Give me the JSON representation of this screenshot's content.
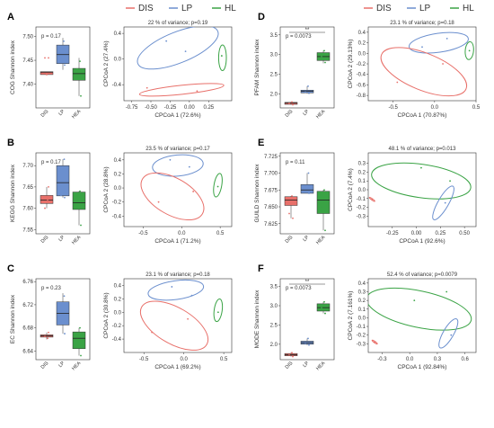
{
  "legend_left": [
    {
      "name": "DIS",
      "color": "#e8706a"
    },
    {
      "name": "LP",
      "color": "#6b8fce"
    },
    {
      "name": "HL",
      "color": "#3aa345"
    }
  ],
  "legend_right": [
    {
      "name": "DIS",
      "color": "#e8706a"
    },
    {
      "name": "LP",
      "color": "#6b8fce"
    },
    {
      "name": "HL",
      "color": "#3aa345"
    }
  ],
  "chart_data": [
    {
      "letter": "A",
      "type": "box",
      "ylabel": "COG Shannon index",
      "categories": [
        "DIS",
        "LP",
        "HEA"
      ],
      "p_label": "p = 0.17",
      "sig": "",
      "ylim": [
        7.35,
        7.52
      ],
      "yticks": [
        7.4,
        7.45,
        7.5
      ],
      "ytick_labels": [
        "7.40",
        "7.45",
        "7.50"
      ],
      "boxes": [
        {
          "q1": 7.42,
          "median": 7.425,
          "q3": 7.426,
          "low": 7.42,
          "high": 7.426,
          "color": "#e8706a"
        },
        {
          "q1": 7.443,
          "median": 7.462,
          "q3": 7.482,
          "low": 7.43,
          "high": 7.497,
          "color": "#6b8fce"
        },
        {
          "q1": 7.408,
          "median": 7.422,
          "q3": 7.433,
          "low": 7.375,
          "high": 7.455,
          "color": "#3aa345"
        }
      ],
      "points": [
        [
          [
            7.455,
            0.2
          ],
          [
            7.455,
            -0.2
          ],
          [
            7.42,
            0
          ]
        ],
        [
          [
            7.49,
            0.1
          ],
          [
            7.456,
            -0.2
          ],
          [
            7.44,
            0.2
          ]
        ],
        [
          [
            7.448,
            0.1
          ],
          [
            7.432,
            -0.2
          ],
          [
            7.375,
            0.2
          ]
        ]
      ]
    },
    {
      "letter": "B",
      "type": "box",
      "ylabel": "KEGG Shannon index",
      "categories": [
        "DIS",
        "LP",
        "HEA"
      ],
      "p_label": "p = 0.17",
      "sig": "",
      "ylim": [
        7.54,
        7.73
      ],
      "yticks": [
        7.55,
        7.6,
        7.65,
        7.7
      ],
      "ytick_labels": [
        "7.55",
        "7.60",
        "7.65",
        "7.70"
      ],
      "boxes": [
        {
          "q1": 7.611,
          "median": 7.619,
          "q3": 7.63,
          "low": 7.6,
          "high": 7.65,
          "color": "#e8706a"
        },
        {
          "q1": 7.629,
          "median": 7.66,
          "q3": 7.7,
          "low": 7.625,
          "high": 7.715,
          "color": "#6b8fce"
        },
        {
          "q1": 7.597,
          "median": 7.613,
          "q3": 7.638,
          "low": 7.56,
          "high": 7.64,
          "color": "#3aa345"
        }
      ],
      "points": [
        [
          [
            7.65,
            0.2
          ],
          [
            7.6,
            -0.2
          ],
          [
            7.62,
            0.1
          ]
        ],
        [
          [
            7.715,
            0.15
          ],
          [
            7.63,
            -0.2
          ],
          [
            7.625,
            0.2
          ]
        ],
        [
          [
            7.64,
            0.1
          ],
          [
            7.63,
            -0.2
          ],
          [
            7.56,
            0.2
          ]
        ]
      ]
    },
    {
      "letter": "C",
      "type": "box",
      "ylabel": "EC Shannon index",
      "categories": [
        "DIS",
        "LP",
        "HEA"
      ],
      "p_label": "p = 0.23",
      "sig": "",
      "ylim": [
        6.625,
        6.765
      ],
      "yticks": [
        6.64,
        6.68,
        6.72,
        6.76
      ],
      "ytick_labels": [
        "6.64",
        "6.68",
        "6.72",
        "6.76"
      ],
      "boxes": [
        {
          "q1": 6.664,
          "median": 6.666,
          "q3": 6.668,
          "low": 6.66,
          "high": 6.672,
          "color": "#e8706a"
        },
        {
          "q1": 6.685,
          "median": 6.705,
          "q3": 6.725,
          "low": 6.67,
          "high": 6.74,
          "color": "#6b8fce"
        },
        {
          "q1": 6.644,
          "median": 6.662,
          "q3": 6.673,
          "low": 6.632,
          "high": 6.68,
          "color": "#3aa345"
        }
      ],
      "points": [
        [
          [
            6.672,
            0.2
          ],
          [
            6.665,
            -0.2
          ],
          [
            6.662,
            0.1
          ]
        ],
        [
          [
            6.735,
            0.15
          ],
          [
            6.69,
            -0.2
          ],
          [
            6.67,
            0.2
          ]
        ],
        [
          [
            6.68,
            0.1
          ],
          [
            6.66,
            -0.2
          ],
          [
            6.632,
            0.2
          ]
        ]
      ]
    },
    {
      "letter": "D",
      "type": "box",
      "ylabel": "PFAM Shannon index",
      "categories": [
        "DIS",
        "LP",
        "HEA"
      ],
      "p_label": "p = 0.0073",
      "sig": "**",
      "ylim": [
        1.65,
        3.7
      ],
      "yticks": [
        2.0,
        2.5,
        3.0,
        3.5
      ],
      "ytick_labels": [
        "2.0",
        "2.5",
        "3.0",
        "3.5"
      ],
      "boxes": [
        {
          "q1": 1.74,
          "median": 1.77,
          "q3": 1.79,
          "low": 1.73,
          "high": 1.8,
          "color": "#e8706a"
        },
        {
          "q1": 2.03,
          "median": 2.07,
          "q3": 2.1,
          "low": 2.02,
          "high": 2.2,
          "color": "#6b8fce"
        },
        {
          "q1": 2.85,
          "median": 2.95,
          "q3": 3.05,
          "low": 2.78,
          "high": 3.1,
          "color": "#3aa345"
        }
      ],
      "points": [
        [
          [
            1.8,
            0.1
          ],
          [
            1.76,
            -0.2
          ],
          [
            1.73,
            0.2
          ]
        ],
        [
          [
            2.2,
            0.1
          ],
          [
            2.05,
            -0.2
          ],
          [
            2.02,
            0.2
          ]
        ],
        [
          [
            3.1,
            0.1
          ],
          [
            2.95,
            -0.2
          ],
          [
            2.8,
            0.2
          ]
        ]
      ]
    },
    {
      "letter": "E",
      "type": "box",
      "ylabel": "GUILD Shannon index",
      "categories": [
        "DIS",
        "LP",
        "HEA"
      ],
      "p_label": "p = 0.11",
      "sig": "",
      "ylim": [
        7.61,
        7.73
      ],
      "yticks": [
        7.625,
        7.65,
        7.675,
        7.7,
        7.725
      ],
      "ytick_labels": [
        "7.625",
        "7.650",
        "7.675",
        "7.700",
        "7.725"
      ],
      "boxes": [
        {
          "q1": 7.652,
          "median": 7.66,
          "q3": 7.665,
          "low": 7.633,
          "high": 7.666,
          "color": "#e8706a"
        },
        {
          "q1": 7.67,
          "median": 7.675,
          "q3": 7.683,
          "low": 7.67,
          "high": 7.7,
          "color": "#6b8fce"
        },
        {
          "q1": 7.64,
          "median": 7.66,
          "q3": 7.673,
          "low": 7.615,
          "high": 7.675,
          "color": "#3aa345"
        }
      ],
      "points": [
        [
          [
            7.666,
            0.1
          ],
          [
            7.64,
            -0.2
          ],
          [
            7.633,
            0.2
          ]
        ],
        [
          [
            7.7,
            0.15
          ],
          [
            7.68,
            -0.2
          ],
          [
            7.67,
            0.2
          ]
        ],
        [
          [
            7.675,
            0.1
          ],
          [
            7.65,
            -0.2
          ],
          [
            7.615,
            0.2
          ]
        ]
      ]
    },
    {
      "letter": "F",
      "type": "box",
      "ylabel": "MODE Shannon index",
      "categories": [
        "DIS",
        "LP",
        "HEA"
      ],
      "p_label": "p = 0.0073",
      "sig": "**",
      "ylim": [
        1.6,
        3.7
      ],
      "yticks": [
        2.0,
        2.5,
        3.0,
        3.5
      ],
      "ytick_labels": [
        "2.0",
        "2.5",
        "3.0",
        "3.5"
      ],
      "boxes": [
        {
          "q1": 1.7,
          "median": 1.73,
          "q3": 1.76,
          "low": 1.68,
          "high": 1.78,
          "color": "#e8706a"
        },
        {
          "q1": 2.0,
          "median": 2.04,
          "q3": 2.08,
          "low": 1.98,
          "high": 2.15,
          "color": "#6b8fce"
        },
        {
          "q1": 2.86,
          "median": 2.95,
          "q3": 3.05,
          "low": 2.8,
          "high": 3.1,
          "color": "#3aa345"
        }
      ],
      "points": [
        [
          [
            1.78,
            0.1
          ],
          [
            1.72,
            -0.2
          ],
          [
            1.68,
            0.2
          ]
        ],
        [
          [
            2.15,
            0.1
          ],
          [
            2.02,
            -0.2
          ],
          [
            1.98,
            0.2
          ]
        ],
        [
          [
            3.1,
            0.1
          ],
          [
            2.95,
            -0.2
          ],
          [
            2.8,
            0.2
          ]
        ]
      ]
    },
    {
      "letter": "",
      "type": "pcoa",
      "title": "22 % of variance; p=0.19",
      "xlabel": "CPCoA 1 (72.6%)",
      "ylabel": "CPCoA 2 (27.4%)",
      "xlim": [
        -0.85,
        0.55
      ],
      "ylim": [
        -0.65,
        0.5
      ],
      "xticks": [
        -0.75,
        -0.5,
        -0.25,
        0,
        0.25
      ],
      "xtick_labels": [
        "-0.75",
        "-0.50",
        "-0.25",
        "0.00",
        "0.25"
      ],
      "yticks": [
        -0.4,
        0,
        0.4
      ],
      "ytick_labels": [
        "-0.4",
        "0.0",
        "0.4"
      ],
      "ellipses": [
        {
          "cx": -0.15,
          "cy": 0.18,
          "rx": 0.56,
          "ry": 0.24,
          "angle": -22,
          "color": "#6b8fce"
        },
        {
          "cx": -0.1,
          "cy": -0.48,
          "rx": 0.55,
          "ry": 0.07,
          "angle": -6,
          "color": "#e8706a"
        },
        {
          "cx": 0.43,
          "cy": 0.02,
          "rx": 0.05,
          "ry": 0.2,
          "angle": 0,
          "color": "#3aa345"
        }
      ],
      "points": [
        {
          "x": -0.3,
          "y": 0.28,
          "c": "#6b8fce"
        },
        {
          "x": -0.05,
          "y": 0.12,
          "c": "#6b8fce"
        },
        {
          "x": -0.55,
          "y": -0.45,
          "c": "#e8706a"
        },
        {
          "x": 0.1,
          "y": -0.5,
          "c": "#e8706a"
        },
        {
          "x": 0.42,
          "y": 0.05,
          "c": "#3aa345"
        }
      ]
    },
    {
      "letter": "",
      "type": "pcoa",
      "title": "23.5 % of variance; p=0.17",
      "xlabel": "CPCoA 1 (71.2%)",
      "ylabel": "CPCoA 2 (28.8%)",
      "xlim": [
        -0.75,
        0.65
      ],
      "ylim": [
        -0.55,
        0.5
      ],
      "xticks": [
        -0.5,
        0,
        0.5
      ],
      "xtick_labels": [
        "-0.5",
        "0.0",
        "0.5"
      ],
      "yticks": [
        -0.4,
        -0.2,
        0,
        0.2,
        0.4
      ],
      "ytick_labels": [
        "-0.4",
        "-0.2",
        "0.0",
        "0.2",
        "0.4"
      ],
      "ellipses": [
        {
          "cx": -0.05,
          "cy": 0.32,
          "rx": 0.33,
          "ry": 0.15,
          "angle": -5,
          "color": "#6b8fce"
        },
        {
          "cx": -0.12,
          "cy": -0.12,
          "rx": 0.45,
          "ry": 0.26,
          "angle": 30,
          "color": "#e8706a"
        },
        {
          "cx": 0.47,
          "cy": 0.04,
          "rx": 0.05,
          "ry": 0.17,
          "angle": 10,
          "color": "#3aa345"
        }
      ],
      "points": [
        {
          "x": -0.15,
          "y": 0.4,
          "c": "#6b8fce"
        },
        {
          "x": 0.1,
          "y": 0.3,
          "c": "#6b8fce"
        },
        {
          "x": -0.3,
          "y": -0.2,
          "c": "#e8706a"
        },
        {
          "x": 0.15,
          "y": -0.05,
          "c": "#e8706a"
        },
        {
          "x": 0.47,
          "y": 0.02,
          "c": "#3aa345"
        }
      ]
    },
    {
      "letter": "",
      "type": "pcoa",
      "title": "23.1 % of variance; p=0.18",
      "xlabel": "CPCoA 1 (69.2%)",
      "ylabel": "CPCoA 2 (30.8%)",
      "xlim": [
        -0.75,
        0.6
      ],
      "ylim": [
        -0.6,
        0.5
      ],
      "xticks": [
        -0.5,
        0,
        0.5
      ],
      "xtick_labels": [
        "-0.5",
        "0.0",
        "0.5"
      ],
      "yticks": [
        -0.4,
        -0.2,
        0,
        0.2,
        0.4
      ],
      "ytick_labels": [
        "-0.4",
        "-0.2",
        "0.0",
        "0.2",
        "0.4"
      ],
      "ellipses": [
        {
          "cx": -0.1,
          "cy": 0.33,
          "rx": 0.35,
          "ry": 0.14,
          "angle": -8,
          "color": "#6b8fce"
        },
        {
          "cx": -0.12,
          "cy": -0.2,
          "rx": 0.47,
          "ry": 0.27,
          "angle": 30,
          "color": "#e8706a"
        },
        {
          "cx": 0.43,
          "cy": 0.03,
          "rx": 0.05,
          "ry": 0.17,
          "angle": 8,
          "color": "#3aa345"
        }
      ],
      "points": [
        {
          "x": -0.15,
          "y": 0.38,
          "c": "#6b8fce"
        },
        {
          "x": 0.1,
          "y": 0.25,
          "c": "#6b8fce"
        },
        {
          "x": -0.4,
          "y": -0.3,
          "c": "#e8706a"
        },
        {
          "x": 0.05,
          "y": -0.1,
          "c": "#e8706a"
        },
        {
          "x": 0.43,
          "y": 0.0,
          "c": "#3aa345"
        }
      ]
    },
    {
      "letter": "",
      "type": "pcoa",
      "title": "23.1 % of variance; p=0.18",
      "xlabel": "CPCoA 1 (70.87%)",
      "ylabel": "CPCoA 2 (29.13%)",
      "xlim": [
        -0.8,
        0.5
      ],
      "ylim": [
        -0.9,
        0.5
      ],
      "xticks": [
        -0.5,
        0,
        0.5
      ],
      "xtick_labels": [
        "-0.5",
        "0.0",
        "0.5"
      ],
      "yticks": [
        -0.8,
        -0.6,
        -0.4,
        -0.2,
        0,
        0.2,
        0.4
      ],
      "ytick_labels": [
        "-0.8",
        "-0.6",
        "-0.4",
        "-0.2",
        "0.0",
        "0.2",
        "0.4"
      ],
      "ellipses": [
        {
          "cx": 0.05,
          "cy": 0.2,
          "rx": 0.36,
          "ry": 0.18,
          "angle": -8,
          "color": "#6b8fce"
        },
        {
          "cx": -0.13,
          "cy": -0.35,
          "rx": 0.55,
          "ry": 0.35,
          "angle": 22,
          "color": "#e8706a"
        },
        {
          "cx": 0.42,
          "cy": 0.05,
          "rx": 0.05,
          "ry": 0.17,
          "angle": 5,
          "color": "#3aa345"
        }
      ],
      "points": [
        {
          "x": 0.15,
          "y": 0.28,
          "c": "#6b8fce"
        },
        {
          "x": -0.15,
          "y": 0.12,
          "c": "#6b8fce"
        },
        {
          "x": -0.45,
          "y": -0.55,
          "c": "#e8706a"
        },
        {
          "x": 0.1,
          "y": -0.2,
          "c": "#e8706a"
        },
        {
          "x": 0.42,
          "y": 0.05,
          "c": "#3aa345"
        }
      ]
    },
    {
      "letter": "",
      "type": "pcoa",
      "title": "48.1 % of variance; p=0.013",
      "xlabel": "CPCoA 1 (92.6%)",
      "ylabel": "CPCoA 2 (7.4%)",
      "xlim": [
        -0.5,
        0.62
      ],
      "ylim": [
        -0.42,
        0.42
      ],
      "xticks": [
        -0.25,
        0,
        0.25,
        0.5
      ],
      "xtick_labels": [
        "-0.25",
        "0.00",
        "0.25",
        "0.50"
      ],
      "yticks": [
        -0.3,
        -0.2,
        -0.1,
        0,
        0.1,
        0.2,
        0.3
      ],
      "ytick_labels": [
        "-0.3",
        "-0.2",
        "-0.1",
        "0.0",
        "0.1",
        "0.2",
        "0.3"
      ],
      "ellipses": [
        {
          "cx": 0.05,
          "cy": 0.1,
          "rx": 0.52,
          "ry": 0.19,
          "angle": 8,
          "color": "#3aa345"
        },
        {
          "cx": 0.28,
          "cy": -0.15,
          "rx": 0.2,
          "ry": 0.06,
          "angle": -60,
          "color": "#6b8fce"
        },
        {
          "cx": -0.46,
          "cy": -0.11,
          "rx": 0.035,
          "ry": 0.008,
          "angle": 35,
          "color": "#e8706a"
        }
      ],
      "points": [
        {
          "x": 0.05,
          "y": 0.25,
          "c": "#3aa345"
        },
        {
          "x": 0.35,
          "y": 0.1,
          "c": "#3aa345"
        },
        {
          "x": 0.3,
          "y": -0.15,
          "c": "#6b8fce"
        },
        {
          "x": -0.46,
          "y": -0.11,
          "c": "#e8706a"
        }
      ]
    },
    {
      "letter": "",
      "type": "pcoa",
      "title": "52.4 % of variance; p=0.0079",
      "xlabel": "CPCoA 1 (92.84%)",
      "ylabel": "CPCoA 2 (7.161%)",
      "xlim": [
        -0.45,
        0.72
      ],
      "ylim": [
        -0.4,
        0.45
      ],
      "xticks": [
        -0.3,
        0,
        0.3,
        0.6
      ],
      "xtick_labels": [
        "-0.3",
        "0.0",
        "0.3",
        "0.6"
      ],
      "yticks": [
        -0.3,
        -0.2,
        -0.1,
        0,
        0.1,
        0.2,
        0.3,
        0.4
      ],
      "ytick_labels": [
        "-0.3",
        "-0.2",
        "-0.1",
        "0.0",
        "0.1",
        "0.2",
        "0.3",
        "0.4"
      ],
      "ellipses": [
        {
          "cx": 0.1,
          "cy": 0.1,
          "rx": 0.58,
          "ry": 0.21,
          "angle": 12,
          "color": "#3aa345"
        },
        {
          "cx": 0.42,
          "cy": -0.18,
          "rx": 0.18,
          "ry": 0.06,
          "angle": -60,
          "color": "#6b8fce"
        },
        {
          "cx": -0.38,
          "cy": -0.28,
          "rx": 0.035,
          "ry": 0.008,
          "angle": 35,
          "color": "#e8706a"
        }
      ],
      "points": [
        {
          "x": 0.05,
          "y": 0.2,
          "c": "#3aa345"
        },
        {
          "x": 0.4,
          "y": 0.3,
          "c": "#3aa345"
        },
        {
          "x": 0.45,
          "y": -0.2,
          "c": "#6b8fce"
        },
        {
          "x": -0.38,
          "y": -0.28,
          "c": "#e8706a"
        }
      ]
    }
  ]
}
